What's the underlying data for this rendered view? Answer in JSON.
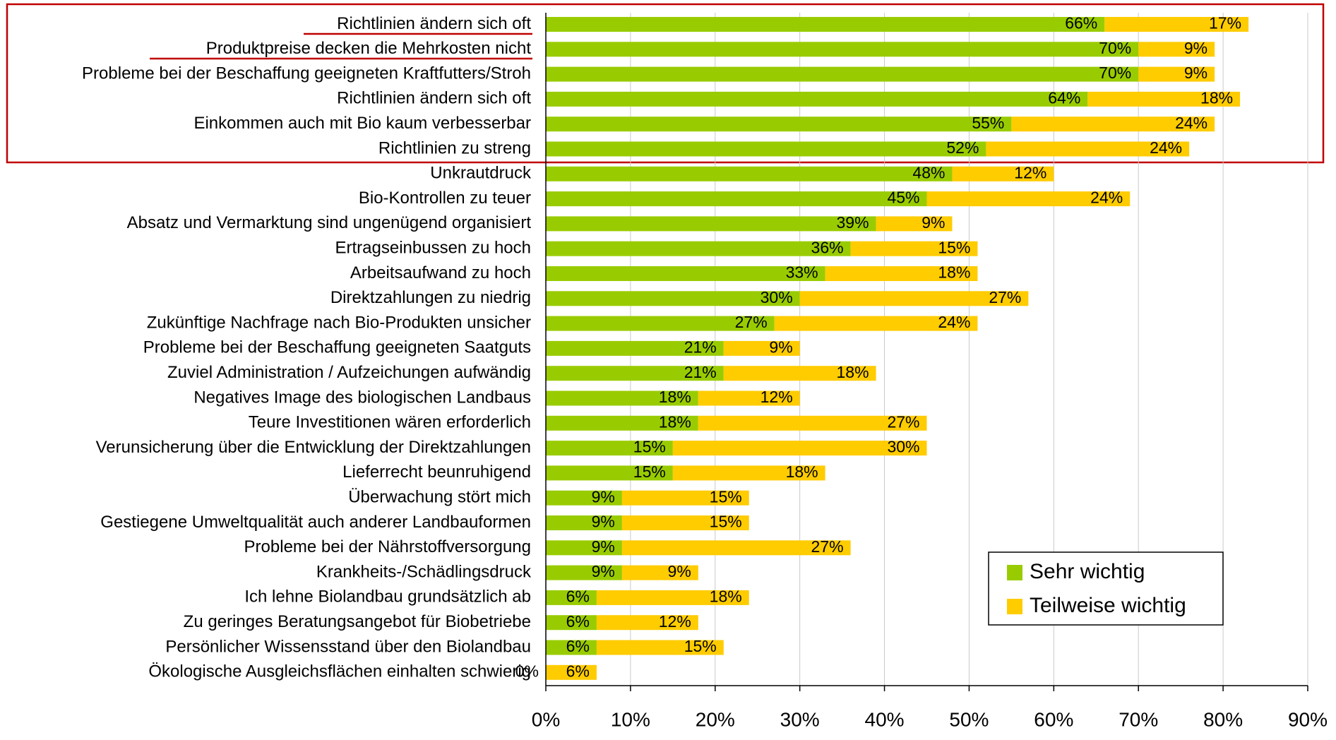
{
  "chart_data": {
    "type": "stacked_barh",
    "categories": [
      "Richtlinien ändern sich oft",
      "Produktpreise decken die Mehrkosten nicht",
      "Probleme bei der Beschaffung geeigneten Kraftfutters/Stroh",
      "Richtlinien ändern sich oft",
      "Einkommen auch mit Bio kaum verbesserbar",
      "Richtlinien zu streng",
      "Unkrautdruck",
      "Bio-Kontrollen zu teuer",
      "Absatz und Vermarktung sind ungenügend organisiert",
      "Ertragseinbussen zu hoch",
      "Arbeitsaufwand zu hoch",
      "Direktzahlungen zu niedrig",
      "Zukünftige Nachfrage nach Bio-Produkten unsicher",
      "Probleme bei der Beschaffung geeigneten Saatguts",
      "Zuviel Administration / Aufzeichungen aufwändig",
      "Negatives Image des biologischen Landbaus",
      "Teure Investitionen wären erforderlich",
      "Verunsicherung über die Entwicklung der Direktzahlungen",
      "Lieferrecht beunruhigend",
      "Überwachung stört mich",
      "Gestiegene Umweltqualität auch anderer Landbauformen",
      "Probleme bei der Nährstoffversorgung",
      "Krankheits-/Schädlingsdruck",
      "Ich lehne Biolandbau grundsätzlich ab",
      "Zu geringes Beratungsangebot für Biobetriebe",
      "Persönlicher Wissensstand über den Biolandbau",
      "Ökologische Ausgleichsflächen einhalten schwierig"
    ],
    "series": [
      {
        "name": "Sehr wichtig",
        "color": "#99cc00",
        "values": [
          66,
          70,
          70,
          64,
          55,
          52,
          48,
          45,
          39,
          36,
          33,
          30,
          27,
          21,
          21,
          18,
          18,
          15,
          15,
          9,
          9,
          9,
          9,
          6,
          6,
          6,
          0
        ],
        "value_labels": [
          "66%",
          "70%",
          "70%",
          "64%",
          "55%",
          "52%",
          "48%",
          "45%",
          "39%",
          "36%",
          "33%",
          "30%",
          "27%",
          "21%",
          "21%",
          "18%",
          "18%",
          "15%",
          "15%",
          "9%",
          "9%",
          "9%",
          "9%",
          "6%",
          "6%",
          "6%",
          "0%"
        ]
      },
      {
        "name": "Teilweise wichtig",
        "color": "#ffcc00",
        "values": [
          17,
          9,
          9,
          18,
          24,
          24,
          12,
          24,
          9,
          15,
          18,
          27,
          24,
          9,
          18,
          12,
          27,
          30,
          18,
          15,
          15,
          27,
          9,
          18,
          12,
          15,
          6
        ],
        "value_labels": [
          "17%",
          "9%",
          "9%",
          "18%",
          "24%",
          "24%",
          "12%",
          "24%",
          "9%",
          "15%",
          "18%",
          "27%",
          "24%",
          "9%",
          "18%",
          "12%",
          "27%",
          "30%",
          "18%",
          "15%",
          "15%",
          "27%",
          "9%",
          "18%",
          "12%",
          "15%",
          "6%"
        ]
      }
    ],
    "xlim": [
      0,
      90
    ],
    "xticks": [
      {
        "value": 0,
        "label": "0%"
      },
      {
        "value": 10,
        "label": "10%"
      },
      {
        "value": 20,
        "label": "20%"
      },
      {
        "value": 30,
        "label": "30%"
      },
      {
        "value": 40,
        "label": "40%"
      },
      {
        "value": 50,
        "label": "50%"
      },
      {
        "value": 60,
        "label": "60%"
      },
      {
        "value": 70,
        "label": "70%"
      },
      {
        "value": 80,
        "label": "80%"
      },
      {
        "value": 90,
        "label": "90%"
      }
    ],
    "grid": true,
    "legend": "lower right"
  }
}
